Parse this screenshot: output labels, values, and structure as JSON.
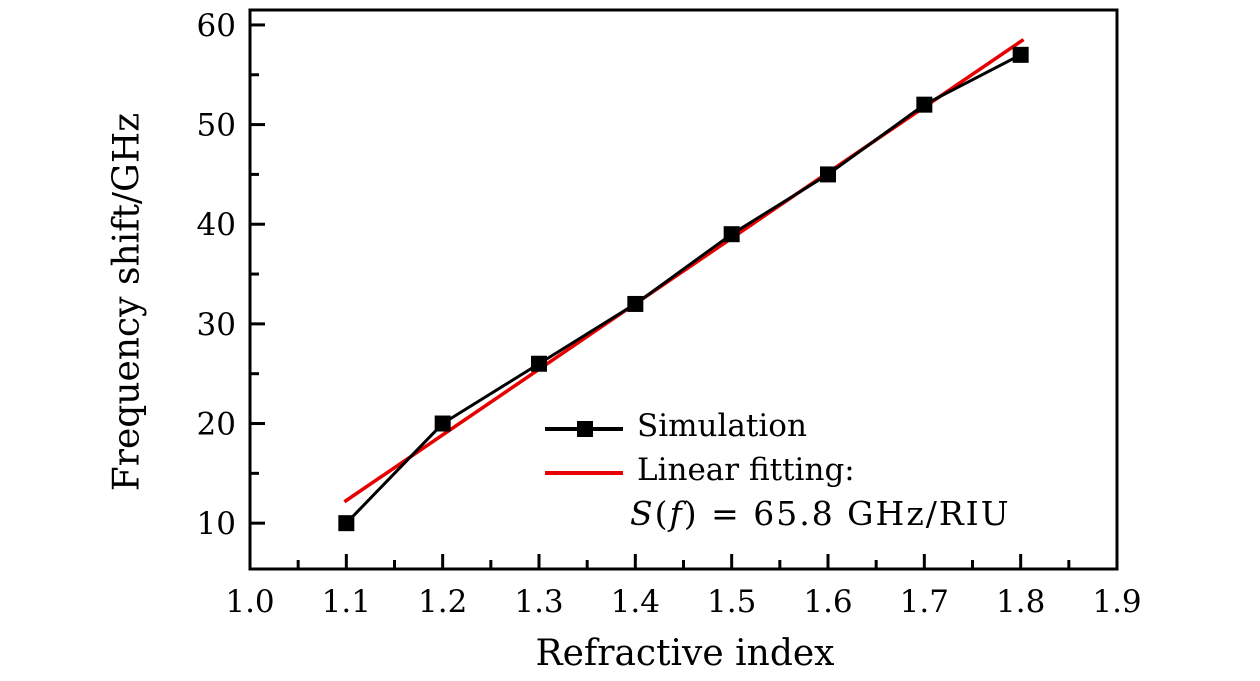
{
  "figure": {
    "background": "#ffffff",
    "xlabel": "Refractive index",
    "ylabel": "Frequency shift/GHz"
  },
  "legend": {
    "simulation_label": "Simulation",
    "fitting_label": "Linear fitting:",
    "formula": {
      "var1": "S",
      "open": "(",
      "var2": "f",
      "close": ")",
      "rest": " = 65.8 GHz/RIU"
    }
  },
  "chart_data": {
    "type": "line",
    "title": "",
    "xlabel": "Refractive index",
    "ylabel": "Frequency shift/GHz",
    "xlim": [
      1.0,
      1.9
    ],
    "ylim": [
      5.4,
      61.5
    ],
    "grid": false,
    "legend_position": "inside lower-right",
    "x_ticks": {
      "major": [
        1.0,
        1.1,
        1.2,
        1.3,
        1.4,
        1.5,
        1.6,
        1.7,
        1.8,
        1.9
      ],
      "labels": [
        "1.0",
        "1.1",
        "1.2",
        "1.3",
        "1.4",
        "1.5",
        "1.6",
        "1.7",
        "1.8",
        "1.9"
      ],
      "minor": [
        1.05,
        1.15,
        1.25,
        1.35,
        1.45,
        1.55,
        1.65,
        1.75,
        1.85
      ]
    },
    "y_ticks": {
      "major": [
        10,
        20,
        30,
        40,
        50,
        60
      ],
      "labels": [
        "10",
        "20",
        "30",
        "40",
        "50",
        "60"
      ],
      "minor": [
        15,
        25,
        35,
        45,
        55
      ]
    },
    "series": [
      {
        "name": "Simulation",
        "type": "line+marker",
        "marker": "filled-square",
        "color": "#000000",
        "x": [
          1.1,
          1.2,
          1.3,
          1.4,
          1.5,
          1.6,
          1.7,
          1.8
        ],
        "y": [
          10,
          20,
          26,
          32,
          39,
          45,
          52,
          57
        ]
      },
      {
        "name": "Linear fitting",
        "type": "line",
        "color": "#e60000",
        "equation": "S(f) = 65.8 GHz/RIU",
        "slope_ghz_per_riu": 65.8,
        "intercept": -60.1,
        "x_start": 1.098,
        "x_end": 1.803
      }
    ]
  }
}
